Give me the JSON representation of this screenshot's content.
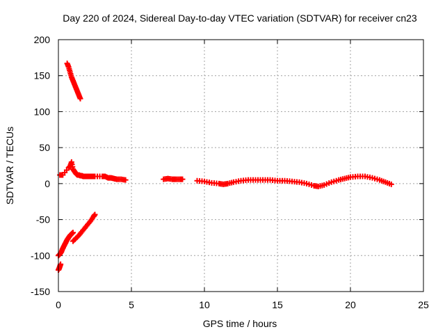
{
  "chart_data": {
    "type": "scatter",
    "title": "Day 220 of 2024, Sidereal Day-to-day VTEC variation (SDTVAR) for receiver cn23",
    "xlabel": "GPS time / hours",
    "ylabel": "SDTVAR / TECUs",
    "xlim": [
      0,
      25
    ],
    "ylim": [
      -150,
      200
    ],
    "xticks": [
      "0",
      "5",
      "10",
      "15",
      "20",
      "25"
    ],
    "yticks": [
      "-150",
      "-100",
      "-50",
      "0",
      "50",
      "100",
      "150",
      "200"
    ],
    "grid": true,
    "marker": "plus",
    "color": "#ff0000",
    "series": [
      {
        "name": "steep-positive-arc",
        "x": [
          0.6,
          0.7,
          0.8,
          0.9,
          1.0,
          1.1,
          1.2,
          1.3,
          1.4,
          1.5
        ],
        "y": [
          167,
          162,
          155,
          148,
          143,
          138,
          133,
          128,
          123,
          118
        ]
      },
      {
        "name": "near-zero-early",
        "x": [
          0.1,
          0.2,
          0.3,
          0.7,
          0.8,
          0.9,
          1.0,
          1.1,
          1.2,
          1.3,
          1.4,
          1.5,
          1.6,
          1.7,
          1.8,
          1.9,
          2.0,
          2.1,
          2.3,
          2.5,
          3.0,
          3.2,
          3.4,
          3.6,
          3.8,
          4.0,
          4.3,
          4.6
        ],
        "y": [
          12,
          12,
          12,
          22,
          24,
          30,
          20,
          17,
          14,
          12,
          12,
          11,
          11,
          10,
          10,
          10,
          10,
          10,
          10,
          10,
          10,
          10,
          8,
          8,
          7,
          6,
          6,
          5
        ]
      },
      {
        "name": "near-zero-main",
        "x": [
          7.2,
          7.5,
          7.8,
          8.0,
          8.3,
          8.5,
          9.5,
          10.0,
          10.5,
          11.0,
          11.3,
          11.6,
          12.0,
          12.5,
          13.0,
          13.5,
          14.0,
          14.5,
          15.0,
          15.5,
          16.0,
          16.5,
          17.0,
          17.5,
          17.8,
          18.2,
          18.7,
          19.2,
          19.6,
          20.0,
          20.5,
          21.0,
          21.5,
          22.0,
          22.4,
          22.8
        ],
        "y": [
          6,
          7,
          6,
          6,
          6,
          6,
          4,
          3,
          1,
          0,
          -1,
          0,
          2,
          4,
          5,
          5,
          5,
          5,
          4,
          4,
          3,
          2,
          0,
          -3,
          -4,
          -2,
          2,
          5,
          7,
          9,
          10,
          10,
          8,
          5,
          2,
          -1
        ]
      },
      {
        "name": "rising-negative-arc-1",
        "x": [
          0.0,
          0.1,
          0.2,
          0.3,
          0.4,
          0.5,
          0.6,
          0.7,
          0.8,
          0.9,
          1.0
        ],
        "y": [
          -100,
          -98,
          -95,
          -90,
          -86,
          -82,
          -78,
          -75,
          -72,
          -70,
          -68
        ]
      },
      {
        "name": "rising-negative-arc-2",
        "x": [
          1.0,
          1.2,
          1.4,
          1.6,
          1.8,
          2.0,
          2.2,
          2.4,
          2.5
        ],
        "y": [
          -80,
          -76,
          -72,
          -67,
          -62,
          -57,
          -52,
          -46,
          -43
        ]
      },
      {
        "name": "low-outliers",
        "x": [
          0.0,
          0.05,
          0.1,
          0.15
        ],
        "y": [
          -120,
          -118,
          -115,
          -112
        ]
      }
    ]
  }
}
